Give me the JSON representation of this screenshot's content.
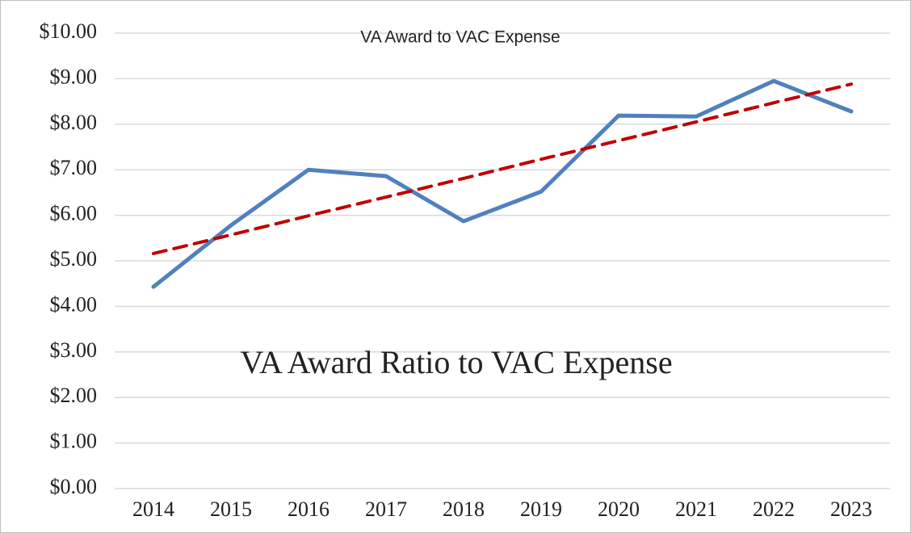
{
  "chart_data": {
    "type": "line",
    "title": "VA Award to VAC Expense",
    "annotation": "VA Award Ratio to VAC Expense",
    "categories": [
      "2014",
      "2015",
      "2016",
      "2017",
      "2018",
      "2019",
      "2020",
      "2021",
      "2022",
      "2023"
    ],
    "series": [
      {
        "color": "#4f81bd",
        "dashed": false,
        "values": [
          4.43,
          5.78,
          7.0,
          6.86,
          5.87,
          6.52,
          8.19,
          8.17,
          8.95,
          8.28
        ]
      },
      {
        "color": "#c00000",
        "dashed": true,
        "values": [
          5.16,
          5.57,
          5.99,
          6.4,
          6.81,
          7.23,
          7.64,
          8.05,
          8.47,
          8.88
        ]
      }
    ],
    "ylim": [
      0,
      10
    ],
    "yticks": [
      {
        "value": 0,
        "label": "$0.00"
      },
      {
        "value": 1,
        "label": "$1.00"
      },
      {
        "value": 2,
        "label": "$2.00"
      },
      {
        "value": 3,
        "label": "$3.00"
      },
      {
        "value": 4,
        "label": "$4.00"
      },
      {
        "value": 5,
        "label": "$5.00"
      },
      {
        "value": 6,
        "label": "$6.00"
      },
      {
        "value": 7,
        "label": "$7.00"
      },
      {
        "value": 8,
        "label": "$8.00"
      },
      {
        "value": 9,
        "label": "$9.00"
      },
      {
        "value": 10,
        "label": "$10.00"
      }
    ],
    "grid": true
  }
}
